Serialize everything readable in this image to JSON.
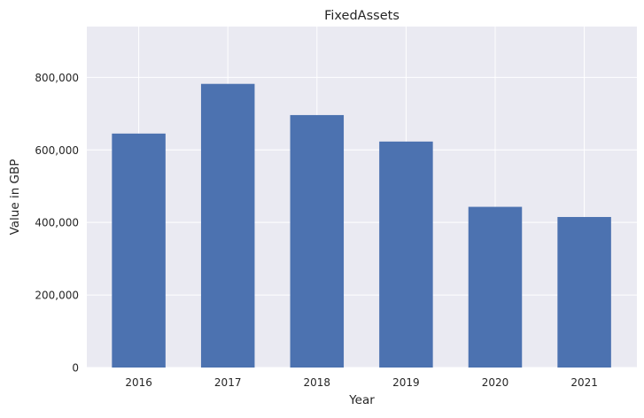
{
  "chart_data": {
    "type": "bar",
    "title": "FixedAssets",
    "xlabel": "Year",
    "ylabel": "Value in GBP",
    "categories": [
      "2016",
      "2017",
      "2018",
      "2019",
      "2020",
      "2021"
    ],
    "values": [
      645000,
      782000,
      696000,
      623000,
      443000,
      415000
    ],
    "ylim": [
      0,
      940000
    ],
    "yticks": [
      0,
      200000,
      400000,
      600000,
      800000
    ],
    "ytick_labels": [
      "0",
      "200,000",
      "400,000",
      "600,000",
      "800,000"
    ],
    "grid": true,
    "bar_color": "#4c72b0",
    "background_color": "#eaeaf2",
    "grid_color": "#ffffff"
  }
}
